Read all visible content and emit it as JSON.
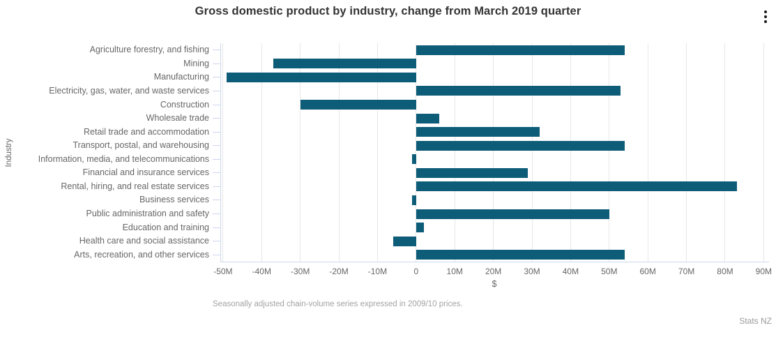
{
  "header": {
    "title": "Gross domestic product by industry, change from March 2019 quarter",
    "menu_icon": "kebab-vertical"
  },
  "chart_data": {
    "type": "bar",
    "orientation": "horizontal",
    "title": "Gross domestic product by industry, change from March 2019 quarter",
    "xlabel": "$",
    "ylabel": "Industry",
    "unit": "millions of dollars",
    "categories": [
      "Agriculture forestry, and fishing",
      "Mining",
      "Manufacturing",
      "Electricity, gas, water, and waste services",
      "Construction",
      "Wholesale trade",
      "Retail trade and accommodation",
      "Transport, postal, and warehousing",
      "Information, media, and telecommunications",
      "Financial and insurance services",
      "Rental, hiring, and real estate services",
      "Business services",
      "Public administration and safety",
      "Education and training",
      "Health care and social assistance",
      "Arts, recreation, and other services"
    ],
    "values": [
      54,
      -37,
      -49,
      53,
      -30,
      6,
      32,
      54,
      -1,
      29,
      83,
      -1,
      50,
      2,
      -6,
      54
    ],
    "xlim": [
      -50.7,
      91.2
    ],
    "xtick_values": [
      -50,
      -40,
      -30,
      -20,
      -10,
      0,
      10,
      20,
      30,
      40,
      50,
      60,
      70,
      80,
      90
    ],
    "xtick_labels": [
      "-50M",
      "-40M",
      "-30M",
      "-20M",
      "-10M",
      "0",
      "10M",
      "20M",
      "30M",
      "40M",
      "50M",
      "60M",
      "70M",
      "80M",
      "90M"
    ],
    "grid": true,
    "legend": false,
    "colors": {
      "bar": "#0d5c78",
      "gridline": "#e6e6e6",
      "axis_line": "#ccd6eb",
      "label_text": "#666666",
      "title_text": "#333333",
      "caption_text": "#a3a3a3",
      "credits_text": "#999999"
    }
  },
  "caption": {
    "text": "Seasonally adjusted chain-volume series expressed in 2009/10 prices."
  },
  "credits": {
    "text": "Stats NZ"
  }
}
